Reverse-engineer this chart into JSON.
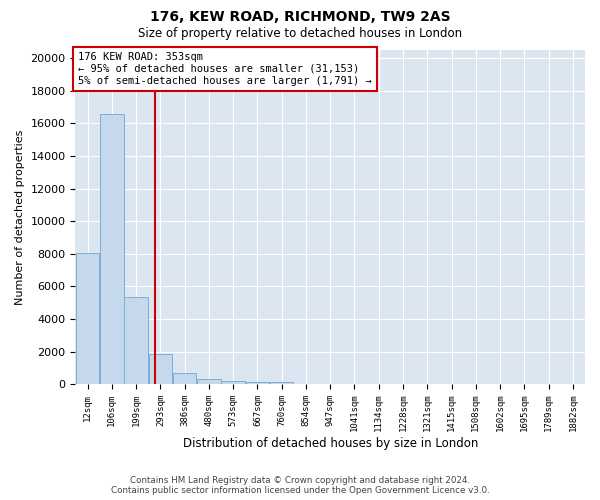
{
  "title": "176, KEW ROAD, RICHMOND, TW9 2AS",
  "subtitle": "Size of property relative to detached houses in London",
  "xlabel": "Distribution of detached houses by size in London",
  "ylabel": "Number of detached properties",
  "bar_color": "#c5d8ec",
  "bar_edge_color": "#7bafd4",
  "vline_color": "#cc0000",
  "vline_index": 2.78,
  "annotation_line1": "176 KEW ROAD: 353sqm",
  "annotation_line2": "← 95% of detached houses are smaller (31,153)",
  "annotation_line3": "5% of semi-detached houses are larger (1,791) →",
  "annotation_box_color": "#cc0000",
  "footer_line1": "Contains HM Land Registry data © Crown copyright and database right 2024.",
  "footer_line2": "Contains public sector information licensed under the Open Government Licence v3.0.",
  "bin_labels": [
    "12sqm",
    "106sqm",
    "199sqm",
    "293sqm",
    "386sqm",
    "480sqm",
    "573sqm",
    "667sqm",
    "760sqm",
    "854sqm",
    "947sqm",
    "1041sqm",
    "1134sqm",
    "1228sqm",
    "1321sqm",
    "1415sqm",
    "1508sqm",
    "1602sqm",
    "1695sqm",
    "1789sqm",
    "1882sqm"
  ],
  "values": [
    8050,
    16550,
    5350,
    1850,
    680,
    330,
    200,
    155,
    100,
    0,
    0,
    0,
    0,
    0,
    0,
    0,
    0,
    0,
    0,
    0,
    0
  ],
  "ylim": [
    0,
    20500
  ],
  "yticks": [
    0,
    2000,
    4000,
    6000,
    8000,
    10000,
    12000,
    14000,
    16000,
    18000,
    20000
  ],
  "plot_bg_color": "#dce6f0",
  "grid_color": "#ffffff"
}
